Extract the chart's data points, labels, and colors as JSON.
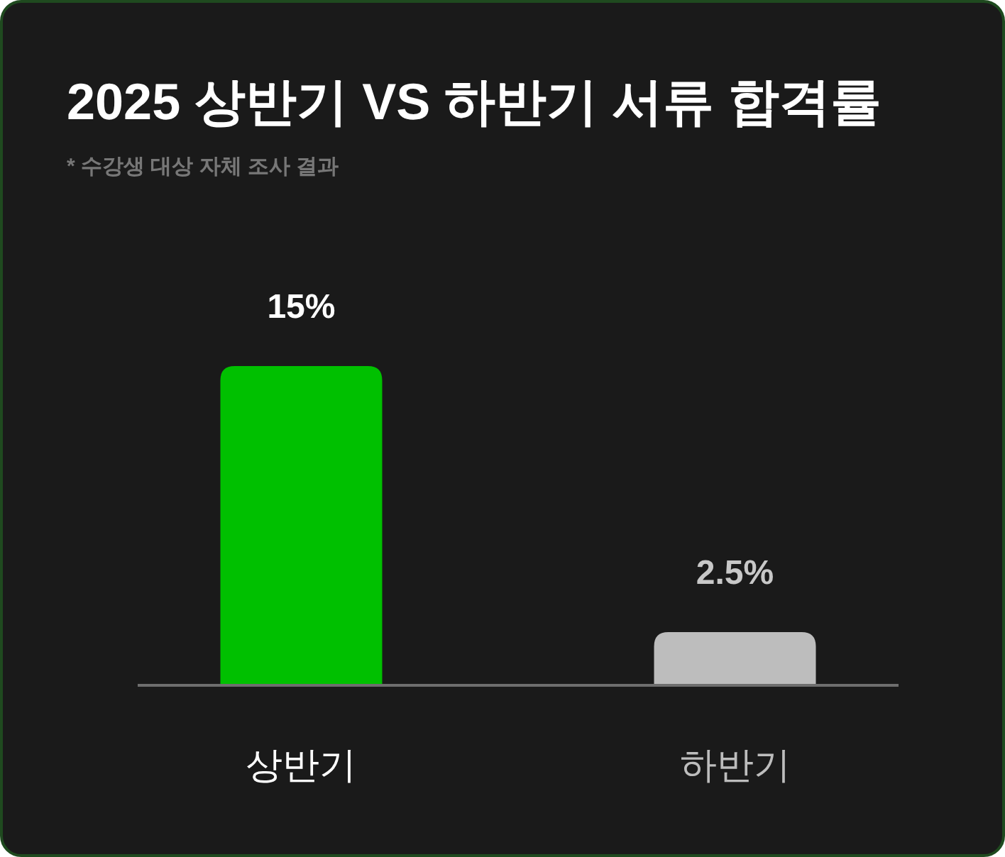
{
  "chart_data": {
    "type": "bar",
    "title": "2025 상반기 VS 하반기 서류 합격률",
    "subtitle": "* 수강생 대상 자체 조사 결과",
    "categories": [
      "상반기",
      "하반기"
    ],
    "values": [
      15,
      2.5
    ],
    "colors": [
      "#00c000",
      "#bdbdbd"
    ],
    "data_labels": true,
    "value_labels": [
      "15%",
      "2.5%"
    ]
  }
}
